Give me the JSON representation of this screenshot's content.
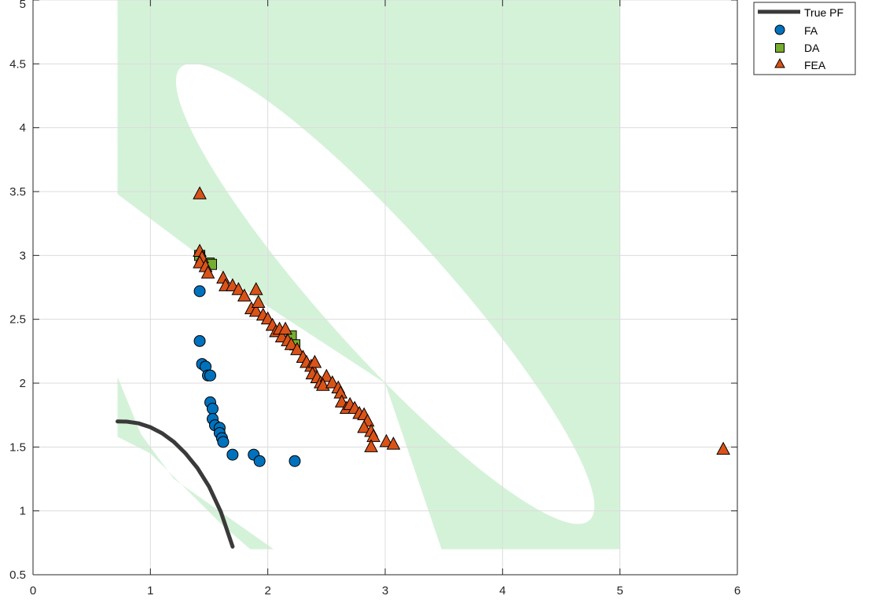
{
  "chart_data": {
    "type": "scatter",
    "title": "",
    "xlabel": "",
    "ylabel": "",
    "xlim": [
      0,
      6
    ],
    "ylim": [
      0.5,
      5
    ],
    "xticks": [
      0,
      1,
      2,
      3,
      4,
      5,
      6
    ],
    "yticks": [
      0.5,
      1,
      1.5,
      2,
      2.5,
      3,
      3.5,
      4,
      4.5,
      5
    ],
    "xtick_labels": [
      "0",
      "1",
      "2",
      "3",
      "4",
      "5",
      "6"
    ],
    "ytick_labels": [
      "0.5",
      "1",
      "1.5",
      "2",
      "2.5",
      "3",
      "3.5",
      "4",
      "4.5",
      "5"
    ],
    "grid": true,
    "legend_position": "top-right-outside",
    "colors": {
      "true_pf": "#3a3a3a",
      "fa": "#0072bd",
      "da": "#77ac30",
      "fea": "#d95319",
      "feasible_region": "#d4f2d8"
    },
    "feasible_region": {
      "x_range": [
        0.72,
        5.0
      ],
      "y_range": [
        0.7,
        5.0
      ],
      "infeasible_ellipse": {
        "center": [
          3.0,
          2.7
        ],
        "semi_axes": [
          2.6,
          0.52
        ],
        "angle_deg": 48
      },
      "lower_infeasible_boundary": [
        [
          0.72,
          3.48
        ],
        [
          2.0,
          2.6
        ],
        [
          3.0,
          2.0
        ],
        [
          3.48,
          0.7
        ]
      ],
      "lower_feasible_band": [
        [
          0.72,
          2.05
        ],
        [
          0.72,
          1.58
        ],
        [
          1.0,
          1.45
        ],
        [
          1.6,
          0.9
        ],
        [
          1.85,
          0.7
        ],
        [
          2.05,
          0.7
        ],
        [
          1.2,
          1.25
        ],
        [
          0.92,
          1.6
        ]
      ]
    },
    "series": [
      {
        "name": "True PF",
        "type": "line",
        "points": [
          [
            0.72,
            1.7
          ],
          [
            0.8,
            1.699
          ],
          [
            0.9,
            1.685
          ],
          [
            1.0,
            1.655
          ],
          [
            1.1,
            1.607
          ],
          [
            1.2,
            1.54
          ],
          [
            1.3,
            1.45
          ],
          [
            1.4,
            1.336
          ],
          [
            1.5,
            1.19
          ],
          [
            1.6,
            0.993
          ],
          [
            1.7,
            0.72
          ]
        ]
      },
      {
        "name": "FA",
        "type": "scatter",
        "marker": "circle",
        "points": [
          [
            1.42,
            2.72
          ],
          [
            1.42,
            2.33
          ],
          [
            1.44,
            2.15
          ],
          [
            1.47,
            2.13
          ],
          [
            1.49,
            2.06
          ],
          [
            1.51,
            2.06
          ],
          [
            1.51,
            1.85
          ],
          [
            1.53,
            1.8
          ],
          [
            1.53,
            1.72
          ],
          [
            1.55,
            1.67
          ],
          [
            1.59,
            1.65
          ],
          [
            1.59,
            1.61
          ],
          [
            1.61,
            1.57
          ],
          [
            1.62,
            1.54
          ],
          [
            1.7,
            1.44
          ],
          [
            1.88,
            1.44
          ],
          [
            1.93,
            1.39
          ],
          [
            2.23,
            1.39
          ]
        ]
      },
      {
        "name": "DA",
        "type": "scatter",
        "marker": "square",
        "points": [
          [
            1.42,
            3.0
          ],
          [
            1.5,
            2.94
          ],
          [
            1.52,
            2.93
          ],
          [
            2.2,
            2.37
          ],
          [
            2.23,
            2.3
          ]
        ]
      },
      {
        "name": "FEA",
        "type": "scatter",
        "marker": "triangle",
        "points": [
          [
            1.42,
            3.48
          ],
          [
            1.42,
            3.03
          ],
          [
            1.44,
            2.98
          ],
          [
            1.42,
            2.94
          ],
          [
            1.47,
            2.91
          ],
          [
            1.49,
            2.86
          ],
          [
            1.62,
            2.82
          ],
          [
            1.64,
            2.76
          ],
          [
            1.7,
            2.76
          ],
          [
            1.75,
            2.73
          ],
          [
            1.8,
            2.68
          ],
          [
            1.9,
            2.73
          ],
          [
            1.86,
            2.58
          ],
          [
            1.9,
            2.56
          ],
          [
            1.92,
            2.63
          ],
          [
            1.96,
            2.53
          ],
          [
            2.0,
            2.5
          ],
          [
            2.04,
            2.45
          ],
          [
            2.07,
            2.4
          ],
          [
            2.1,
            2.42
          ],
          [
            2.12,
            2.36
          ],
          [
            2.15,
            2.42
          ],
          [
            2.17,
            2.33
          ],
          [
            2.2,
            2.3
          ],
          [
            2.25,
            2.26
          ],
          [
            2.3,
            2.2
          ],
          [
            2.33,
            2.16
          ],
          [
            2.37,
            2.13
          ],
          [
            2.4,
            2.16
          ],
          [
            2.38,
            2.07
          ],
          [
            2.42,
            2.04
          ],
          [
            2.45,
            2.0
          ],
          [
            2.5,
            2.05
          ],
          [
            2.47,
            1.98
          ],
          [
            2.55,
            2.0
          ],
          [
            2.6,
            1.96
          ],
          [
            2.62,
            1.92
          ],
          [
            2.63,
            1.85
          ],
          [
            2.67,
            1.8
          ],
          [
            2.7,
            1.83
          ],
          [
            2.74,
            1.8
          ],
          [
            2.78,
            1.76
          ],
          [
            2.82,
            1.75
          ],
          [
            2.85,
            1.7
          ],
          [
            2.82,
            1.65
          ],
          [
            2.88,
            1.62
          ],
          [
            2.9,
            1.58
          ],
          [
            2.88,
            1.5
          ],
          [
            3.01,
            1.54
          ],
          [
            3.07,
            1.52
          ],
          [
            5.88,
            1.48
          ]
        ]
      }
    ]
  }
}
